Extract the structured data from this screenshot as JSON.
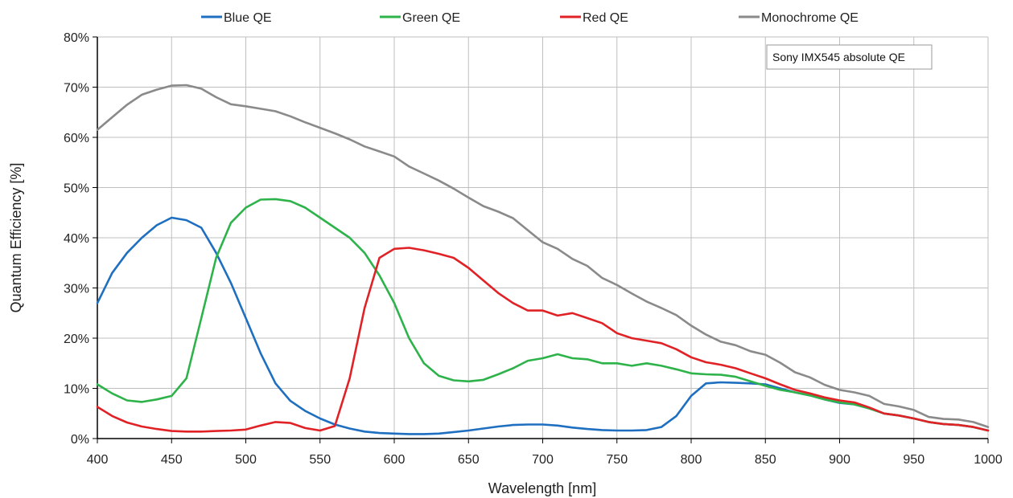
{
  "chart_data": {
    "type": "line",
    "title": "",
    "xlabel": "Wavelength [nm]",
    "ylabel": "Quantum Efficiency [%]",
    "xlim": [
      400,
      1000
    ],
    "ylim": [
      0,
      80
    ],
    "x_ticks": [
      400,
      450,
      500,
      550,
      600,
      650,
      700,
      750,
      800,
      850,
      900,
      950,
      1000
    ],
    "y_ticks": [
      0,
      10,
      20,
      30,
      40,
      50,
      60,
      70,
      80
    ],
    "x_tick_labels": [
      "400",
      "450",
      "500",
      "550",
      "600",
      "650",
      "700",
      "750",
      "800",
      "850",
      "900",
      "950",
      "1000"
    ],
    "y_tick_labels": [
      "0%",
      "10%",
      "20%",
      "30%",
      "40%",
      "50%",
      "60%",
      "70%",
      "80%"
    ],
    "grid": true,
    "legend_position": "top",
    "annotation": "Sony IMX545 absolute QE",
    "x": [
      400,
      410,
      420,
      430,
      440,
      450,
      460,
      470,
      480,
      490,
      500,
      510,
      520,
      530,
      540,
      550,
      560,
      570,
      580,
      590,
      600,
      610,
      620,
      630,
      640,
      650,
      660,
      670,
      680,
      690,
      700,
      710,
      720,
      730,
      740,
      750,
      760,
      770,
      780,
      790,
      800,
      810,
      820,
      830,
      840,
      850,
      860,
      870,
      880,
      890,
      900,
      910,
      920,
      930,
      940,
      950,
      960,
      970,
      980,
      990,
      1000
    ],
    "series": [
      {
        "name": "Blue QE",
        "color": "#1f6fc0",
        "values": [
          27,
          33,
          37,
          40,
          42.5,
          44,
          43.5,
          42,
          37,
          31,
          24,
          17,
          11,
          7.5,
          5.5,
          4,
          2.8,
          2,
          1.4,
          1.1,
          1,
          0.9,
          0.9,
          1,
          1.3,
          1.6,
          2,
          2.4,
          2.7,
          2.8,
          2.8,
          2.6,
          2.2,
          1.9,
          1.7,
          1.6,
          1.6,
          1.7,
          2.3,
          4.5,
          8.5,
          11,
          11.2,
          11.1,
          11,
          10.8,
          10,
          9.2,
          8.6,
          7.8,
          7.1,
          6.8,
          6,
          5,
          4.6,
          4,
          3.3,
          2.9,
          2.7,
          2.3,
          1.6
        ]
      },
      {
        "name": "Green QE",
        "color": "#2db34a",
        "values": [
          10.8,
          9,
          7.6,
          7.3,
          7.8,
          8.5,
          12,
          24,
          36,
          43,
          46,
          47.6,
          47.7,
          47.3,
          46,
          44,
          42,
          40,
          37,
          32.5,
          27,
          20,
          15,
          12.5,
          11.6,
          11.4,
          11.7,
          12.8,
          14,
          15.5,
          16,
          16.8,
          16,
          15.8,
          15,
          15,
          14.5,
          15,
          14.5,
          13.8,
          13,
          12.8,
          12.7,
          12.3,
          11.4,
          10.5,
          9.7,
          9.2,
          8.6,
          7.8,
          7.2,
          6.8,
          6,
          5,
          4.6,
          4,
          3.3,
          2.9,
          2.7,
          2.3,
          1.6
        ]
      },
      {
        "name": "Red QE",
        "color": "#e02226",
        "values": [
          6.3,
          4.5,
          3.2,
          2.4,
          1.9,
          1.5,
          1.4,
          1.4,
          1.5,
          1.6,
          1.8,
          2.6,
          3.3,
          3.1,
          2.1,
          1.6,
          2.5,
          12,
          26,
          36,
          37.8,
          38,
          37.5,
          36.8,
          36,
          34,
          31.5,
          29,
          27,
          25.5,
          25.5,
          24.5,
          25,
          24,
          23,
          21,
          20,
          19.5,
          19,
          17.8,
          16.2,
          15.2,
          14.7,
          14,
          13,
          12,
          10.8,
          9.7,
          9,
          8.2,
          7.6,
          7.2,
          6.2,
          5,
          4.6,
          4,
          3.3,
          2.9,
          2.7,
          2.3,
          1.6
        ]
      },
      {
        "name": "Monochrome QE",
        "color": "#8a8a8a",
        "values": [
          61.5,
          64,
          66.5,
          68.5,
          69.5,
          70.3,
          70.4,
          69.7,
          68,
          66.6,
          66.2,
          65.7,
          65.2,
          64.2,
          63,
          61.9,
          60.8,
          59.6,
          58.2,
          57.2,
          56.2,
          54.2,
          52.8,
          51.4,
          49.8,
          48,
          46.3,
          45.2,
          43.9,
          41.5,
          39.1,
          37.8,
          35.8,
          34.4,
          32,
          30.6,
          28.9,
          27.3,
          26,
          24.6,
          22.5,
          20.7,
          19.3,
          18.6,
          17.4,
          16.7,
          15.1,
          13.2,
          12.2,
          10.7,
          9.7,
          9.2,
          8.5,
          6.9,
          6.4,
          5.7,
          4.3,
          3.9,
          3.8,
          3.3,
          2.3
        ]
      }
    ]
  }
}
